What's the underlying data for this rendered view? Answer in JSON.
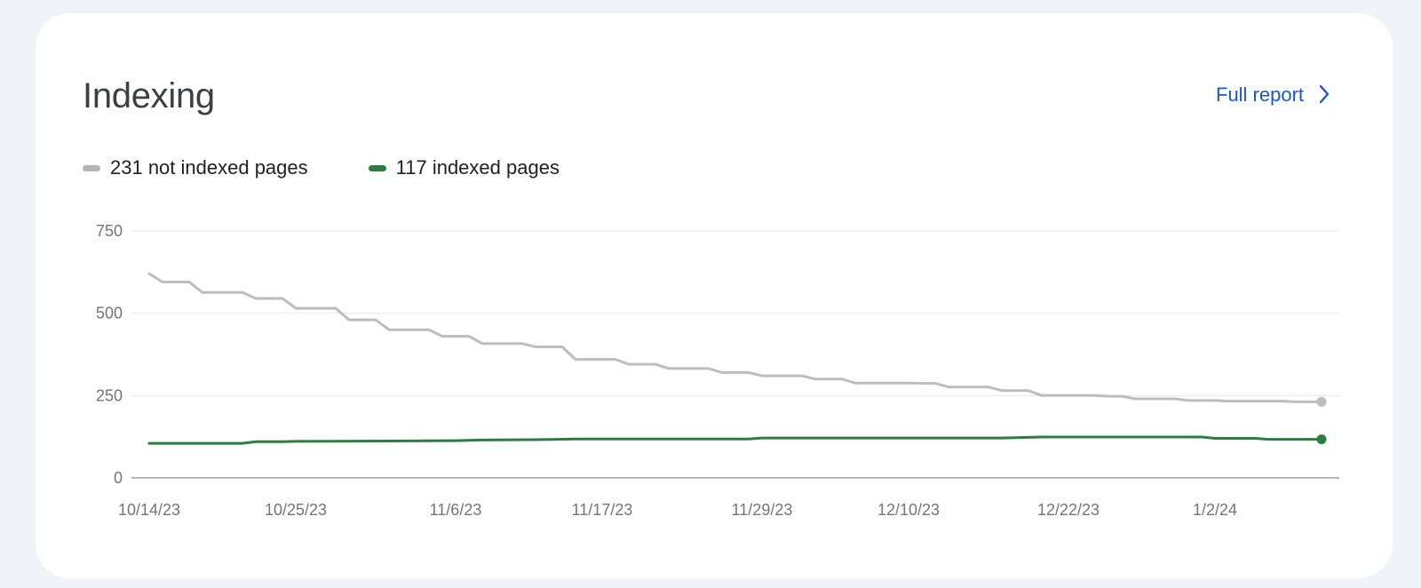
{
  "card": {
    "title": "Indexing",
    "full_report_label": "Full report",
    "full_report_icon": "chevron-right-icon",
    "accent_color": "#1a57d6"
  },
  "legend": [
    {
      "label": "231 not indexed pages",
      "color": "#b3b3b3"
    },
    {
      "label": "117 indexed pages",
      "color": "#2e7d40"
    }
  ],
  "chart_data": {
    "type": "line",
    "title": "",
    "xlabel": "",
    "ylabel": "",
    "ylim": [
      0,
      750
    ],
    "yticks": [
      0,
      250,
      500,
      750
    ],
    "grid": true,
    "legend_position": "top-left",
    "x_tick_labels": [
      "10/14/23",
      "10/25/23",
      "11/6/23",
      "11/17/23",
      "11/29/23",
      "12/10/23",
      "12/22/23",
      "1/2/24"
    ],
    "x_start": "10/14/23",
    "x_end": "1/10/24",
    "series": [
      {
        "name": "231 not indexed pages",
        "color": "#bdbdbd",
        "points": [
          [
            "10/14/23",
            620
          ],
          [
            "10/15/23",
            595
          ],
          [
            "10/16/23",
            595
          ],
          [
            "10/17/23",
            595
          ],
          [
            "10/18/23",
            563
          ],
          [
            "10/19/23",
            563
          ],
          [
            "10/20/23",
            563
          ],
          [
            "10/21/23",
            563
          ],
          [
            "10/22/23",
            545
          ],
          [
            "10/23/23",
            545
          ],
          [
            "10/24/23",
            545
          ],
          [
            "10/25/23",
            515
          ],
          [
            "10/26/23",
            515
          ],
          [
            "10/27/23",
            515
          ],
          [
            "10/28/23",
            515
          ],
          [
            "10/29/23",
            480
          ],
          [
            "10/30/23",
            480
          ],
          [
            "10/31/23",
            480
          ],
          [
            "11/1/23",
            450
          ],
          [
            "11/2/23",
            450
          ],
          [
            "11/3/23",
            450
          ],
          [
            "11/4/23",
            450
          ],
          [
            "11/5/23",
            430
          ],
          [
            "11/6/23",
            430
          ],
          [
            "11/7/23",
            430
          ],
          [
            "11/8/23",
            408
          ],
          [
            "11/9/23",
            408
          ],
          [
            "11/10/23",
            408
          ],
          [
            "11/11/23",
            408
          ],
          [
            "11/12/23",
            398
          ],
          [
            "11/13/23",
            398
          ],
          [
            "11/14/23",
            398
          ],
          [
            "11/15/23",
            360
          ],
          [
            "11/16/23",
            360
          ],
          [
            "11/17/23",
            360
          ],
          [
            "11/18/23",
            360
          ],
          [
            "11/19/23",
            345
          ],
          [
            "11/20/23",
            345
          ],
          [
            "11/21/23",
            345
          ],
          [
            "11/22/23",
            332
          ],
          [
            "11/23/23",
            332
          ],
          [
            "11/24/23",
            332
          ],
          [
            "11/25/23",
            332
          ],
          [
            "11/26/23",
            320
          ],
          [
            "11/27/23",
            320
          ],
          [
            "11/28/23",
            320
          ],
          [
            "11/29/23",
            310
          ],
          [
            "11/30/23",
            310
          ],
          [
            "12/1/23",
            310
          ],
          [
            "12/2/23",
            310
          ],
          [
            "12/3/23",
            300
          ],
          [
            "12/4/23",
            300
          ],
          [
            "12/5/23",
            300
          ],
          [
            "12/6/23",
            288
          ],
          [
            "12/7/23",
            288
          ],
          [
            "12/8/23",
            288
          ],
          [
            "12/9/23",
            288
          ],
          [
            "12/10/23",
            288
          ],
          [
            "12/11/23",
            287
          ],
          [
            "12/12/23",
            287
          ],
          [
            "12/13/23",
            276
          ],
          [
            "12/14/23",
            276
          ],
          [
            "12/15/23",
            276
          ],
          [
            "12/16/23",
            276
          ],
          [
            "12/17/23",
            265
          ],
          [
            "12/18/23",
            265
          ],
          [
            "12/19/23",
            265
          ],
          [
            "12/20/23",
            250
          ],
          [
            "12/21/23",
            250
          ],
          [
            "12/22/23",
            250
          ],
          [
            "12/23/23",
            250
          ],
          [
            "12/24/23",
            250
          ],
          [
            "12/25/23",
            248
          ],
          [
            "12/26/23",
            248
          ],
          [
            "12/27/23",
            240
          ],
          [
            "12/28/23",
            240
          ],
          [
            "12/29/23",
            240
          ],
          [
            "12/30/23",
            240
          ],
          [
            "12/31/23",
            235
          ],
          [
            "1/1/24",
            235
          ],
          [
            "1/2/24",
            235
          ],
          [
            "1/3/24",
            233
          ],
          [
            "1/4/24",
            233
          ],
          [
            "1/5/24",
            233
          ],
          [
            "1/6/24",
            233
          ],
          [
            "1/7/24",
            233
          ],
          [
            "1/8/24",
            231
          ],
          [
            "1/9/24",
            231
          ],
          [
            "1/10/24",
            231
          ]
        ]
      },
      {
        "name": "117 indexed pages",
        "color": "#2e7d40",
        "points": [
          [
            "10/14/23",
            105
          ],
          [
            "10/21/23",
            105
          ],
          [
            "10/22/23",
            110
          ],
          [
            "10/24/23",
            110
          ],
          [
            "10/25/23",
            111
          ],
          [
            "11/1/23",
            112
          ],
          [
            "11/6/23",
            113
          ],
          [
            "11/8/23",
            115
          ],
          [
            "11/12/23",
            116
          ],
          [
            "11/15/23",
            118
          ],
          [
            "11/28/23",
            118
          ],
          [
            "11/29/23",
            121
          ],
          [
            "12/10/23",
            121
          ],
          [
            "12/17/23",
            121
          ],
          [
            "12/20/23",
            124
          ],
          [
            "1/1/24",
            124
          ],
          [
            "1/2/24",
            120
          ],
          [
            "1/5/24",
            120
          ],
          [
            "1/6/24",
            117
          ],
          [
            "1/10/24",
            117
          ]
        ]
      }
    ]
  }
}
